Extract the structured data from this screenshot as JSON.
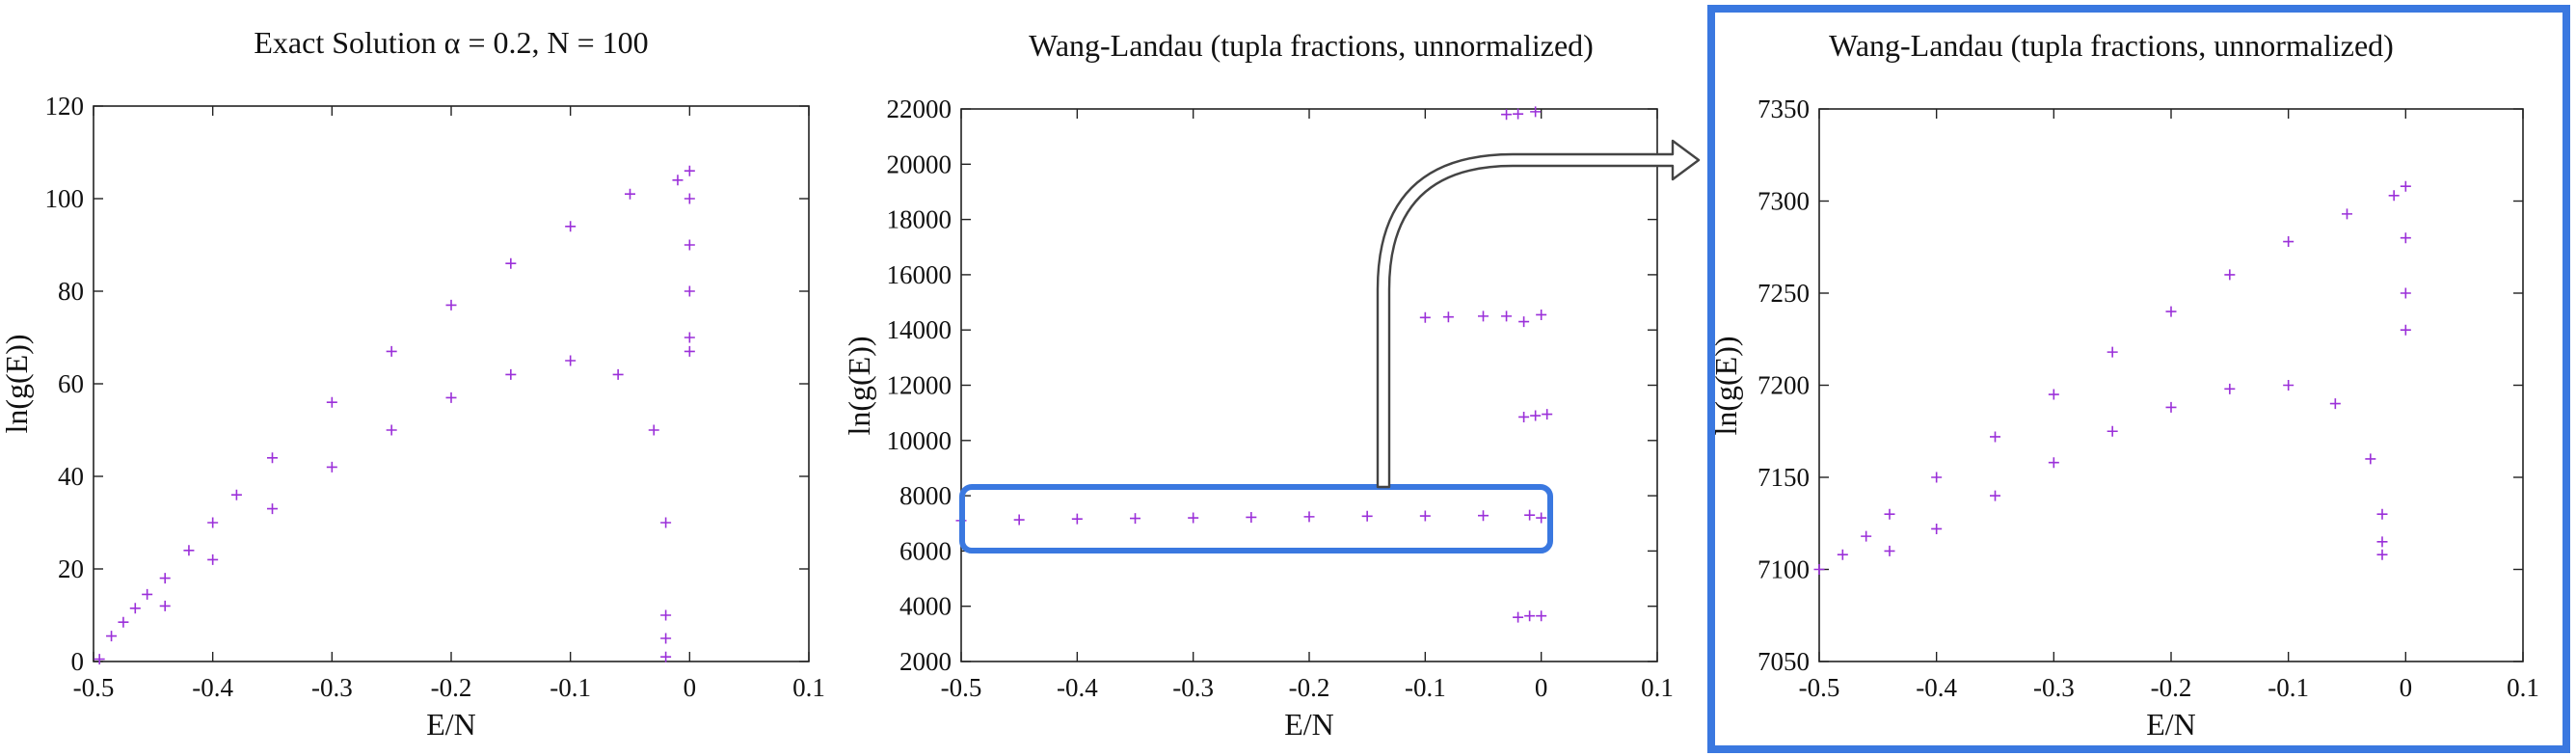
{
  "chart_data": [
    {
      "type": "scatter",
      "title": "Exact Solution α = 0.2, N = 100",
      "xlabel": "E/N",
      "ylabel": "ln(g(E))",
      "xlim": [
        -0.5,
        0.1
      ],
      "ylim": [
        0,
        120
      ],
      "xticks": [
        "-0.5",
        "-0.4",
        "-0.3",
        "-0.2",
        "-0.1",
        "0",
        "0.1"
      ],
      "yticks": [
        "0",
        "20",
        "40",
        "60",
        "80",
        "100",
        "120"
      ],
      "marker": "+",
      "grid": false,
      "series": [
        {
          "points": [
            [
              -0.495,
              0.5
            ],
            [
              -0.485,
              5.5
            ],
            [
              -0.475,
              8.5
            ],
            [
              -0.465,
              11.5
            ],
            [
              -0.455,
              14.5
            ],
            [
              -0.44,
              18
            ],
            [
              -0.42,
              24
            ],
            [
              -0.4,
              30
            ],
            [
              -0.38,
              36
            ],
            [
              -0.35,
              44
            ],
            [
              -0.3,
              56
            ],
            [
              -0.25,
              67
            ],
            [
              -0.2,
              77
            ],
            [
              -0.15,
              86
            ],
            [
              -0.1,
              94
            ],
            [
              -0.05,
              101
            ],
            [
              -0.01,
              104
            ],
            [
              0,
              106
            ],
            [
              -0.44,
              12
            ],
            [
              -0.4,
              22
            ],
            [
              -0.35,
              33
            ],
            [
              -0.3,
              42
            ],
            [
              -0.25,
              50
            ],
            [
              -0.2,
              57
            ],
            [
              -0.15,
              62
            ],
            [
              -0.1,
              65
            ],
            [
              -0.06,
              62
            ],
            [
              -0.03,
              50
            ],
            [
              -0.02,
              30
            ],
            [
              -0.02,
              10
            ],
            [
              -0.02,
              5
            ],
            [
              -0.02,
              1
            ],
            [
              0,
              67
            ],
            [
              0,
              70
            ],
            [
              0,
              80
            ],
            [
              0,
              90
            ],
            [
              0,
              100
            ]
          ]
        }
      ]
    },
    {
      "type": "scatter",
      "title": "Wang-Landau (tupla fractions, unnormalized)",
      "xlabel": "E/N",
      "ylabel": "ln(g(E))",
      "xlim": [
        -0.5,
        0.1
      ],
      "ylim": [
        2000,
        22000
      ],
      "xticks": [
        "-0.5",
        "-0.4",
        "-0.3",
        "-0.2",
        "-0.1",
        "0",
        "0.1"
      ],
      "yticks": [
        "2000",
        "4000",
        "6000",
        "8000",
        "10000",
        "12000",
        "14000",
        "16000",
        "18000",
        "20000",
        "22000"
      ],
      "marker": "+",
      "grid": false,
      "series": [
        {
          "points": [
            [
              -0.5,
              7100
            ],
            [
              -0.45,
              7130
            ],
            [
              -0.4,
              7160
            ],
            [
              -0.35,
              7180
            ],
            [
              -0.3,
              7200
            ],
            [
              -0.25,
              7220
            ],
            [
              -0.2,
              7240
            ],
            [
              -0.15,
              7260
            ],
            [
              -0.1,
              7270
            ],
            [
              -0.05,
              7280
            ],
            [
              -0.01,
              7300
            ],
            [
              0,
              7200
            ],
            [
              -0.1,
              14450
            ],
            [
              -0.08,
              14470
            ],
            [
              -0.05,
              14500
            ],
            [
              -0.03,
              14500
            ],
            [
              -0.015,
              14300
            ],
            [
              0,
              14550
            ],
            [
              -0.03,
              21800
            ],
            [
              -0.02,
              21820
            ],
            [
              -0.005,
              21900
            ],
            [
              -0.015,
              10850
            ],
            [
              -0.005,
              10900
            ],
            [
              0.005,
              10950
            ],
            [
              -0.02,
              3600
            ],
            [
              -0.01,
              3650
            ],
            [
              0,
              3650
            ]
          ]
        }
      ]
    },
    {
      "type": "scatter",
      "title": "Wang-Landau (tupla fractions, unnormalized)",
      "xlabel": "E/N",
      "ylabel": "ln(g(E))",
      "xlim": [
        -0.5,
        0.1
      ],
      "ylim": [
        7050,
        7350
      ],
      "xticks": [
        "-0.5",
        "-0.4",
        "-0.3",
        "-0.2",
        "-0.1",
        "0",
        "0.1"
      ],
      "yticks": [
        "7050",
        "7100",
        "7150",
        "7200",
        "7250",
        "7300",
        "7350"
      ],
      "marker": "+",
      "grid": false,
      "series": [
        {
          "points": [
            [
              -0.5,
              7100
            ],
            [
              -0.48,
              7108
            ],
            [
              -0.46,
              7118
            ],
            [
              -0.44,
              7130
            ],
            [
              -0.4,
              7150
            ],
            [
              -0.35,
              7172
            ],
            [
              -0.3,
              7195
            ],
            [
              -0.25,
              7218
            ],
            [
              -0.2,
              7240
            ],
            [
              -0.15,
              7260
            ],
            [
              -0.1,
              7278
            ],
            [
              -0.05,
              7293
            ],
            [
              -0.01,
              7303
            ],
            [
              0,
              7308
            ],
            [
              -0.44,
              7110
            ],
            [
              -0.4,
              7122
            ],
            [
              -0.35,
              7140
            ],
            [
              -0.3,
              7158
            ],
            [
              -0.25,
              7175
            ],
            [
              -0.2,
              7188
            ],
            [
              -0.15,
              7198
            ],
            [
              -0.1,
              7200
            ],
            [
              -0.06,
              7190
            ],
            [
              -0.03,
              7160
            ],
            [
              -0.02,
              7130
            ],
            [
              -0.02,
              7115
            ],
            [
              -0.02,
              7108
            ],
            [
              0,
              7230
            ],
            [
              0,
              7250
            ],
            [
              0,
              7280
            ]
          ]
        }
      ]
    }
  ],
  "colors": {
    "marker": "#9b30d9",
    "highlight": "#3a78e0",
    "axis": "#222222"
  }
}
